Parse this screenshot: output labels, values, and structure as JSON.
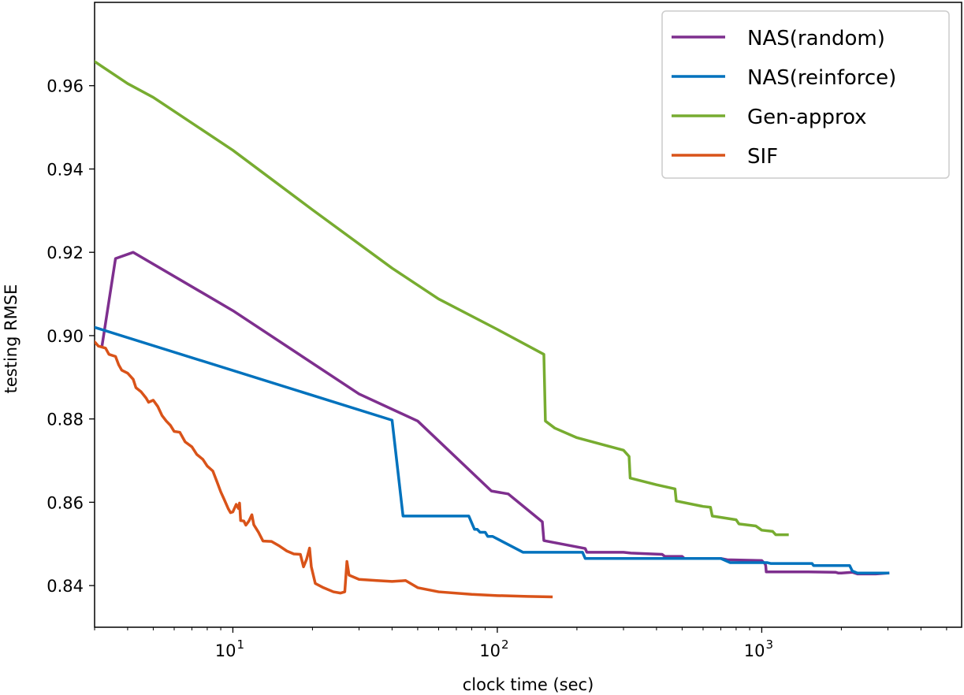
{
  "chart_data": {
    "type": "line",
    "title": "",
    "xlabel": "clock time (sec)",
    "ylabel": "testing RMSE",
    "xscale": "log",
    "xlim": [
      3,
      5700
    ],
    "ylim": [
      0.83,
      0.98
    ],
    "x_ticks": [
      {
        "value": 10,
        "base": "10",
        "exp": "1"
      },
      {
        "value": 100,
        "base": "10",
        "exp": "2"
      },
      {
        "value": 1000,
        "base": "10",
        "exp": "3"
      }
    ],
    "y_ticks": [
      {
        "value": 0.84,
        "label": "0.84"
      },
      {
        "value": 0.86,
        "label": "0.86"
      },
      {
        "value": 0.88,
        "label": "0.88"
      },
      {
        "value": 0.9,
        "label": "0.90"
      },
      {
        "value": 0.92,
        "label": "0.92"
      },
      {
        "value": 0.94,
        "label": "0.94"
      },
      {
        "value": 0.96,
        "label": "0.96"
      }
    ],
    "grid": false,
    "legend_position": "top-right",
    "series": [
      {
        "name": "NAS(random)",
        "color": "#7e2f8e",
        "points": [
          [
            3.2,
            0.8975
          ],
          [
            3.6,
            0.9185
          ],
          [
            4.2,
            0.92
          ],
          [
            10,
            0.906
          ],
          [
            30,
            0.886
          ],
          [
            50,
            0.8795
          ],
          [
            95,
            0.8627
          ],
          [
            110,
            0.862
          ],
          [
            148,
            0.8553
          ],
          [
            150,
            0.8508
          ],
          [
            215,
            0.8489
          ],
          [
            218,
            0.848
          ],
          [
            300,
            0.848
          ],
          [
            320,
            0.8478
          ],
          [
            420,
            0.8475
          ],
          [
            430,
            0.847
          ],
          [
            500,
            0.847
          ],
          [
            510,
            0.8465
          ],
          [
            700,
            0.8465
          ],
          [
            740,
            0.8462
          ],
          [
            1000,
            0.846
          ],
          [
            1030,
            0.8452
          ],
          [
            1035,
            0.8448
          ],
          [
            1040,
            0.8433
          ],
          [
            1500,
            0.8433
          ],
          [
            1900,
            0.8432
          ],
          [
            1950,
            0.843
          ],
          [
            2000,
            0.843
          ],
          [
            2200,
            0.8432
          ],
          [
            2300,
            0.8428
          ],
          [
            2700,
            0.8428
          ],
          [
            3000,
            0.843
          ]
        ]
      },
      {
        "name": "NAS(reinforce)",
        "color": "#0072bd",
        "points": [
          [
            3,
            0.902
          ],
          [
            40,
            0.8797
          ],
          [
            44,
            0.8567
          ],
          [
            78,
            0.8567
          ],
          [
            82,
            0.8535
          ],
          [
            84,
            0.8535
          ],
          [
            86,
            0.8528
          ],
          [
            90,
            0.8528
          ],
          [
            92,
            0.8518
          ],
          [
            96,
            0.8518
          ],
          [
            125,
            0.848
          ],
          [
            210,
            0.848
          ],
          [
            215,
            0.8465
          ],
          [
            700,
            0.8465
          ],
          [
            760,
            0.8455
          ],
          [
            1050,
            0.8455
          ],
          [
            1080,
            0.8453
          ],
          [
            1550,
            0.8453
          ],
          [
            1570,
            0.8448
          ],
          [
            2150,
            0.8448
          ],
          [
            2200,
            0.8435
          ],
          [
            2300,
            0.843
          ],
          [
            3000,
            0.843
          ]
        ]
      },
      {
        "name": "Gen-approx",
        "color": "#77ac30",
        "points": [
          [
            3,
            0.9658
          ],
          [
            4,
            0.9605
          ],
          [
            5,
            0.9572
          ],
          [
            10,
            0.9445
          ],
          [
            20,
            0.9302
          ],
          [
            40,
            0.9162
          ],
          [
            60,
            0.9088
          ],
          [
            100,
            0.9015
          ],
          [
            150,
            0.8955
          ],
          [
            152,
            0.8795
          ],
          [
            165,
            0.8778
          ],
          [
            200,
            0.8755
          ],
          [
            300,
            0.8725
          ],
          [
            315,
            0.871
          ],
          [
            318,
            0.8658
          ],
          [
            400,
            0.8642
          ],
          [
            470,
            0.8632
          ],
          [
            475,
            0.8603
          ],
          [
            600,
            0.859
          ],
          [
            640,
            0.8588
          ],
          [
            650,
            0.8567
          ],
          [
            800,
            0.8558
          ],
          [
            820,
            0.8548
          ],
          [
            950,
            0.8543
          ],
          [
            1000,
            0.8533
          ],
          [
            1100,
            0.853
          ],
          [
            1130,
            0.8522
          ],
          [
            1250,
            0.8522
          ]
        ]
      },
      {
        "name": "SIF",
        "color": "#d95319",
        "points": [
          [
            3,
            0.8985
          ],
          [
            3.1,
            0.8975
          ],
          [
            3.3,
            0.897
          ],
          [
            3.4,
            0.8955
          ],
          [
            3.6,
            0.895
          ],
          [
            3.7,
            0.893
          ],
          [
            3.8,
            0.8917
          ],
          [
            4,
            0.891
          ],
          [
            4.2,
            0.8895
          ],
          [
            4.3,
            0.8875
          ],
          [
            4.5,
            0.8865
          ],
          [
            4.7,
            0.885
          ],
          [
            4.8,
            0.884
          ],
          [
            5,
            0.8845
          ],
          [
            5.2,
            0.883
          ],
          [
            5.4,
            0.8808
          ],
          [
            5.6,
            0.8795
          ],
          [
            5.8,
            0.8785
          ],
          [
            6,
            0.877
          ],
          [
            6.3,
            0.8768
          ],
          [
            6.6,
            0.8745
          ],
          [
            7,
            0.8733
          ],
          [
            7.3,
            0.8715
          ],
          [
            7.7,
            0.8703
          ],
          [
            8,
            0.8687
          ],
          [
            8.4,
            0.8675
          ],
          [
            8.7,
            0.865
          ],
          [
            9,
            0.8625
          ],
          [
            9.3,
            0.8605
          ],
          [
            9.6,
            0.8585
          ],
          [
            9.8,
            0.8575
          ],
          [
            10,
            0.8577
          ],
          [
            10.3,
            0.8595
          ],
          [
            10.5,
            0.8585
          ],
          [
            10.6,
            0.8598
          ],
          [
            10.7,
            0.8556
          ],
          [
            11,
            0.8555
          ],
          [
            11.2,
            0.8545
          ],
          [
            11.5,
            0.8555
          ],
          [
            11.8,
            0.857
          ],
          [
            12,
            0.8546
          ],
          [
            12.5,
            0.8528
          ],
          [
            13,
            0.8507
          ],
          [
            14,
            0.8506
          ],
          [
            15,
            0.8495
          ],
          [
            16,
            0.8483
          ],
          [
            17,
            0.8476
          ],
          [
            18,
            0.8475
          ],
          [
            18.5,
            0.8445
          ],
          [
            19,
            0.8463
          ],
          [
            19.5,
            0.849
          ],
          [
            19.8,
            0.8445
          ],
          [
            20.5,
            0.8405
          ],
          [
            22,
            0.8395
          ],
          [
            24,
            0.8385
          ],
          [
            25.5,
            0.8382
          ],
          [
            26.5,
            0.8385
          ],
          [
            27,
            0.8458
          ],
          [
            27.5,
            0.8425
          ],
          [
            30,
            0.8415
          ],
          [
            35,
            0.8412
          ],
          [
            40,
            0.841
          ],
          [
            45,
            0.8412
          ],
          [
            50,
            0.8395
          ],
          [
            60,
            0.8385
          ],
          [
            80,
            0.8379
          ],
          [
            100,
            0.8376
          ],
          [
            130,
            0.8374
          ],
          [
            160,
            0.8373
          ]
        ]
      }
    ]
  }
}
